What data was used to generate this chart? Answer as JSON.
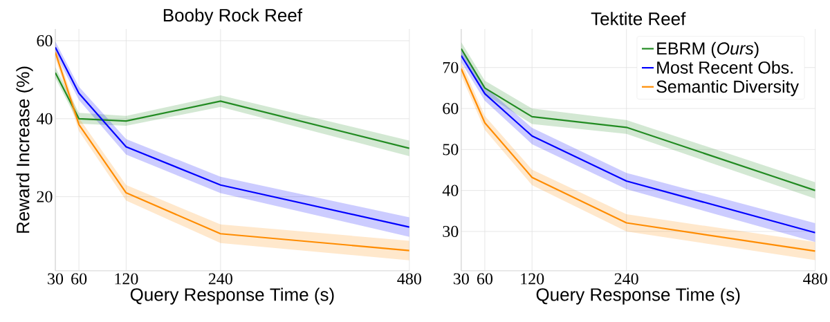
{
  "chart_data": [
    {
      "type": "line",
      "title": "Booby Rock Reef",
      "xlabel": "Query Response Time (s)",
      "ylabel": "Reward Increase (%)",
      "x": [
        30,
        60,
        120,
        240,
        480
      ],
      "xlim": [
        30,
        480
      ],
      "xticks": [
        30,
        60,
        120,
        240,
        480
      ],
      "ylim": [
        1,
        63
      ],
      "yticks": [
        20,
        40,
        60
      ],
      "grid": true,
      "legend": false,
      "line_style": "solid",
      "series": [
        {
          "color": "#228b22",
          "values": [
            51.8,
            40.0,
            39.4,
            44.5,
            32.4
          ],
          "lower": [
            50.4,
            38.7,
            38.2,
            43.0,
            30.4
          ],
          "upper": [
            53.2,
            41.5,
            40.7,
            46.0,
            34.4
          ]
        },
        {
          "color": "#0000ff",
          "values": [
            58.3,
            46.5,
            32.8,
            23.0,
            12.2
          ],
          "lower": [
            56.8,
            44.8,
            30.8,
            20.9,
            9.7
          ],
          "upper": [
            59.8,
            48.2,
            34.8,
            25.1,
            14.7
          ]
        },
        {
          "color": "#ff8c00",
          "values": [
            57.0,
            38.5,
            21.0,
            10.5,
            6.2
          ],
          "lower": [
            55.5,
            36.8,
            19.0,
            8.1,
            3.7
          ],
          "upper": [
            58.5,
            40.2,
            23.0,
            12.9,
            8.7
          ]
        }
      ]
    },
    {
      "type": "line",
      "title": "Tektite Reef",
      "xlabel": "Query Response Time (s)",
      "x": [
        30,
        60,
        120,
        240,
        480
      ],
      "xlim": [
        30,
        480
      ],
      "xticks": [
        30,
        60,
        120,
        240,
        480
      ],
      "ylim": [
        20.4,
        79.4
      ],
      "yticks": [
        30,
        40,
        50,
        60,
        70
      ],
      "grid": true,
      "legend": "top right",
      "line_style": "solid",
      "series": [
        {
          "name": "EBRM (*Ours*)",
          "color": "#228b22",
          "values": [
            74.6,
            65.0,
            58.0,
            55.4,
            40.0
          ],
          "lower": [
            73.0,
            63.5,
            56.2,
            53.8,
            38.0
          ],
          "upper": [
            76.2,
            66.8,
            60.0,
            57.2,
            42.0
          ]
        },
        {
          "name": "Most Recent Obs.",
          "color": "#0000ff",
          "values": [
            72.9,
            63.6,
            53.3,
            42.3,
            29.7
          ],
          "lower": [
            71.3,
            61.9,
            51.3,
            40.3,
            27.4
          ],
          "upper": [
            74.5,
            65.3,
            55.3,
            44.3,
            32.0
          ]
        },
        {
          "name": "Semantic Diversity",
          "color": "#ff8c00",
          "values": [
            69.7,
            56.5,
            43.2,
            32.1,
            25.2
          ],
          "lower": [
            68.0,
            54.8,
            41.3,
            30.0,
            23.0
          ],
          "upper": [
            71.4,
            58.2,
            45.1,
            34.2,
            27.4
          ]
        }
      ]
    }
  ]
}
